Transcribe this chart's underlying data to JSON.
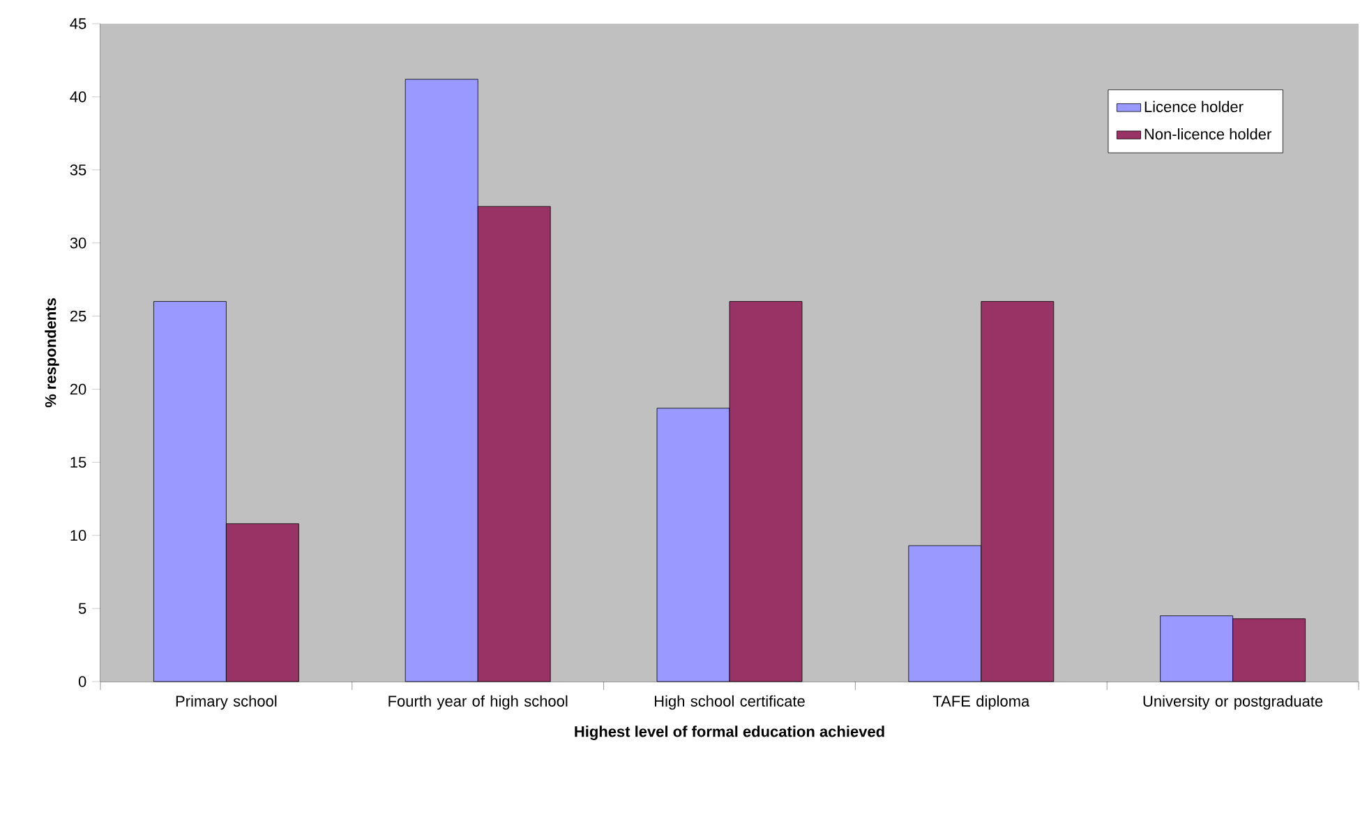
{
  "chart_data": {
    "type": "bar",
    "categories": [
      "Primary school",
      "Fourth year of high school",
      "High school certificate",
      "TAFE diploma",
      "University or postgraduate"
    ],
    "series": [
      {
        "name": "Licence holder",
        "color": "#9999ff",
        "values": [
          26.0,
          41.2,
          18.7,
          9.3,
          4.5
        ]
      },
      {
        "name": "Non-licence holder",
        "color": "#993366",
        "values": [
          10.8,
          32.5,
          26.0,
          26.0,
          4.3
        ]
      }
    ],
    "xlabel": "Highest level of formal education achieved",
    "ylabel": "% respondents",
    "ylim": [
      0,
      45
    ],
    "yticks": [
      0,
      5,
      10,
      15,
      20,
      25,
      30,
      35,
      40,
      45
    ],
    "legend": "top right",
    "grid": false
  }
}
